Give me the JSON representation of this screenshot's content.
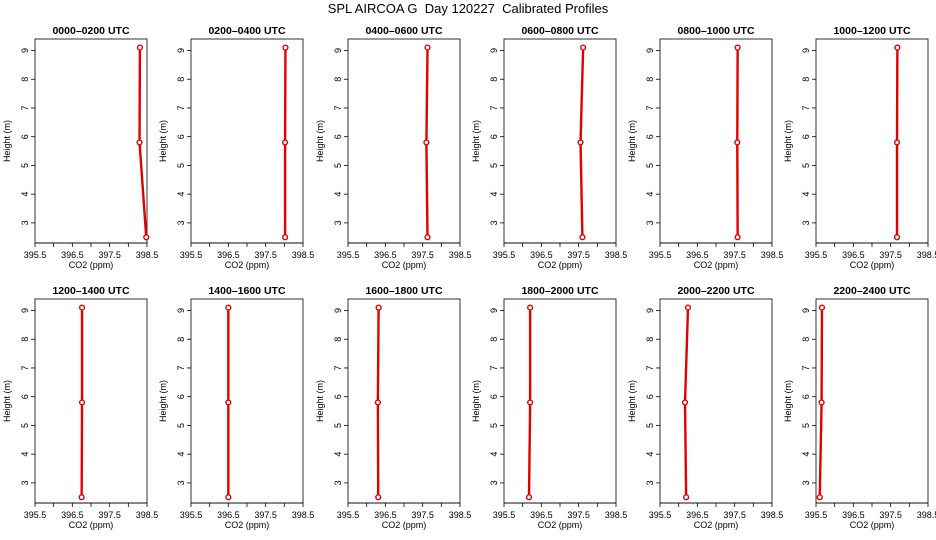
{
  "page": {
    "title": "SPL AIRCOA G  Day 120227  Calibrated Profiles"
  },
  "chart_data": {
    "type": "line",
    "title": "SPL AIRCOA G  Day 120227  Calibrated Profiles",
    "xlabel": "CO2 (ppm)",
    "ylabel": "Height (m)",
    "xlim": [
      395.5,
      398.5
    ],
    "ylim": [
      2.3,
      9.4
    ],
    "x_ticks": [
      "395.5",
      "396.5",
      "397.5",
      "398.5"
    ],
    "x_tick_values": [
      395.5,
      396.5,
      397.5,
      398.5
    ],
    "y_ticks": [
      "3",
      "4",
      "5",
      "6",
      "7",
      "8",
      "9"
    ],
    "y_tick_values": [
      3,
      4,
      5,
      6,
      7,
      8,
      9
    ],
    "heights": [
      2.5,
      5.8,
      9.1
    ],
    "line_color": "#e00000",
    "panels": [
      {
        "title": "0000–0200 UTC",
        "co2": [
          398.48,
          398.3,
          398.31
        ]
      },
      {
        "title": "0200–0400 UTC",
        "co2": [
          398.02,
          398.02,
          398.03
        ]
      },
      {
        "title": "0400–0600 UTC",
        "co2": [
          397.63,
          397.6,
          397.63
        ]
      },
      {
        "title": "0600–0800 UTC",
        "co2": [
          397.6,
          397.55,
          397.62
        ]
      },
      {
        "title": "0800–1000 UTC",
        "co2": [
          397.58,
          397.57,
          397.58
        ]
      },
      {
        "title": "1000–1200 UTC",
        "co2": [
          397.67,
          397.67,
          397.68
        ]
      },
      {
        "title": "1200–1400 UTC",
        "co2": [
          396.75,
          396.76,
          396.76
        ]
      },
      {
        "title": "1400–1600 UTC",
        "co2": [
          396.5,
          396.5,
          396.5
        ]
      },
      {
        "title": "1600–1800 UTC",
        "co2": [
          396.31,
          396.3,
          396.32
        ]
      },
      {
        "title": "1800–2000 UTC",
        "co2": [
          396.17,
          396.2,
          396.2
        ]
      },
      {
        "title": "2000–2200 UTC",
        "co2": [
          396.2,
          396.17,
          396.25
        ]
      },
      {
        "title": "2200–2400 UTC",
        "co2": [
          395.6,
          395.65,
          395.66
        ]
      }
    ]
  }
}
